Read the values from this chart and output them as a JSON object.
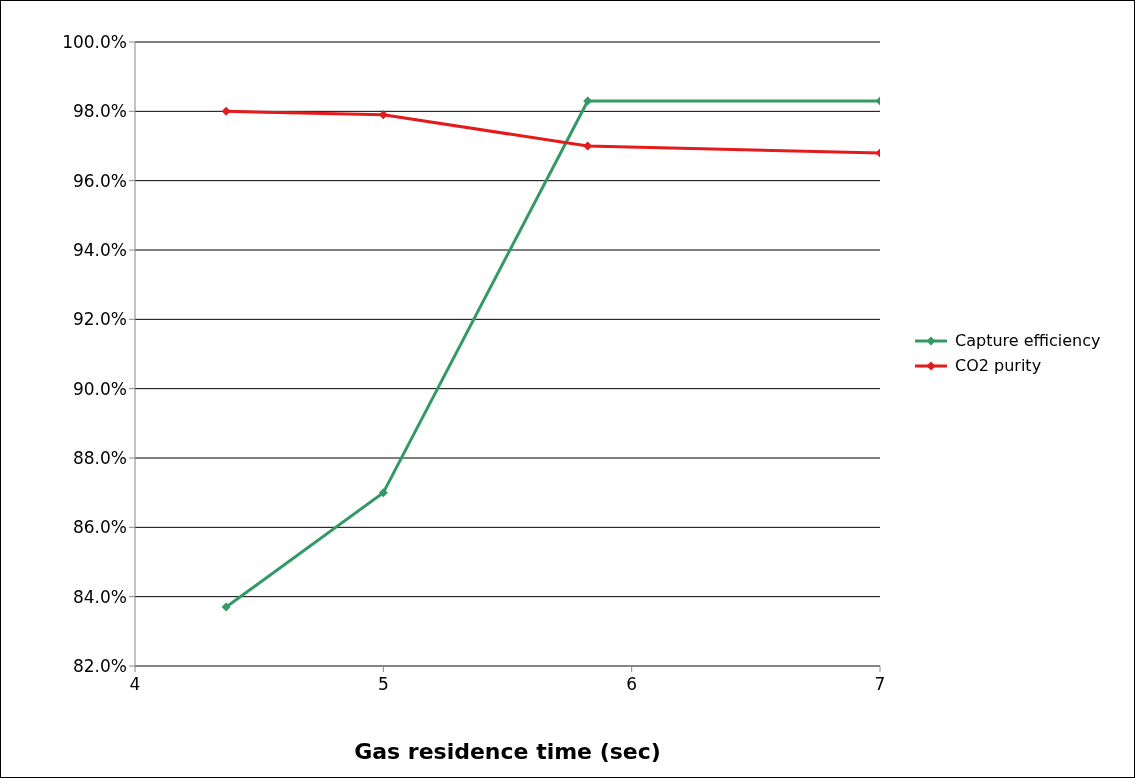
{
  "chart_data": {
    "type": "line",
    "xlabel": "Gas residence time (sec)",
    "x": [
      4.367,
      5,
      5.823,
      7
    ],
    "series": [
      {
        "name": "Capture efficiency",
        "color": "#339966",
        "values": [
          83.7,
          87.0,
          98.3,
          98.3
        ]
      },
      {
        "name": "CO2 purity",
        "color": "#e41a1c",
        "values": [
          98.0,
          97.9,
          97.0,
          96.8
        ]
      }
    ],
    "xlim": [
      4,
      7
    ],
    "xticks": [
      4,
      5,
      6,
      7
    ],
    "ylim": [
      82,
      100
    ],
    "yticks": [
      {
        "value": 82,
        "label": "82.0%"
      },
      {
        "value": 84,
        "label": "84.0%"
      },
      {
        "value": 86,
        "label": "86.0%"
      },
      {
        "value": 88,
        "label": "88.0%"
      },
      {
        "value": 90,
        "label": "90.0%"
      },
      {
        "value": 92,
        "label": "92.0%"
      },
      {
        "value": 94,
        "label": "94.0%"
      },
      {
        "value": 96,
        "label": "96.0%"
      },
      {
        "value": 98,
        "label": "98.0%"
      },
      {
        "value": 100,
        "label": "100.0%"
      }
    ],
    "grid": "y",
    "legend": "right",
    "marker": "diamond",
    "line_style": "solid"
  }
}
